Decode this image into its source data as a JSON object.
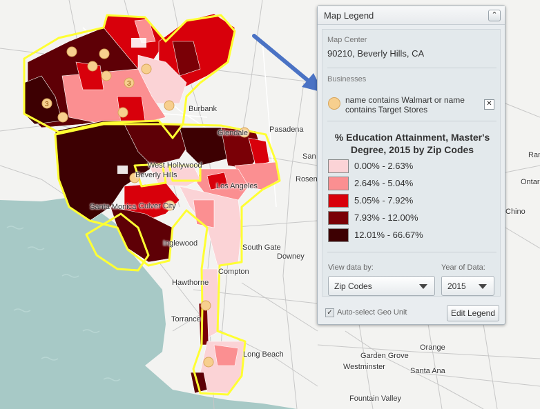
{
  "map": {
    "cities": [
      {
        "name": "Burbank",
        "cls": "c-burbank"
      },
      {
        "name": "Glendale",
        "cls": "c-glendale"
      },
      {
        "name": "Pasadena",
        "cls": "c-pasadena"
      },
      {
        "name": "West Hollywood",
        "cls": "c-weho"
      },
      {
        "name": "Beverly Hills",
        "cls": "c-bh"
      },
      {
        "name": "Los Angeles",
        "cls": "c-la"
      },
      {
        "name": "Santa Monica",
        "cls": "c-sm"
      },
      {
        "name": "Culver City",
        "cls": "c-cc"
      },
      {
        "name": "Inglewood",
        "cls": "c-ing"
      },
      {
        "name": "Rosen",
        "cls": "c-rosen"
      },
      {
        "name": "San Gabri",
        "cls": "c-sg"
      },
      {
        "name": "South Gate",
        "cls": "c-southgate"
      },
      {
        "name": "Downey",
        "cls": "c-downey"
      },
      {
        "name": "Compton",
        "cls": "c-compton"
      },
      {
        "name": "Hawthorne",
        "cls": "c-hawthorne"
      },
      {
        "name": "Torrance",
        "cls": "c-torrance"
      },
      {
        "name": "Long Beach",
        "cls": "c-lb"
      },
      {
        "name": "Garden Grove",
        "cls": "c-gg"
      },
      {
        "name": "Westminster",
        "cls": "c-west"
      },
      {
        "name": "Orange",
        "cls": "c-orange"
      },
      {
        "name": "Santa Ana",
        "cls": "c-sa"
      },
      {
        "name": "Fountain Valley",
        "cls": "c-fv"
      },
      {
        "name": "Chino",
        "cls": "c-chino"
      },
      {
        "name": "Ontar",
        "cls": "c-ontar"
      },
      {
        "name": "Ran",
        "cls": "c-ran"
      }
    ],
    "cluster_labels": [
      "3",
      "3"
    ]
  },
  "legend": {
    "title": "Map Legend",
    "collapse_glyph": "⌃",
    "map_center_label": "Map Center",
    "map_center_value": "90210, Beverly Hills, CA",
    "businesses_label": "Businesses",
    "business_item": "name contains Walmart or name contains Target Stores",
    "remove_glyph": "✕",
    "theme_title": "% Education Attainment, Master's Degree, 2015 by Zip Codes",
    "classes": [
      {
        "label": "0.00% - 2.63%",
        "color": "#fbd3d6"
      },
      {
        "label": "2.64% - 5.04%",
        "color": "#fb8f91"
      },
      {
        "label": "5.05% - 7.92%",
        "color": "#d8000b"
      },
      {
        "label": "7.93% - 12.00%",
        "color": "#7a0006"
      },
      {
        "label": "12.01% - 66.67%",
        "color": "#3d0002"
      }
    ],
    "view_by_label": "View data by:",
    "view_by_value": "Zip Codes",
    "year_label": "Year of Data:",
    "year_value": "2015",
    "auto_select_label": "Auto-select Geo Unit",
    "auto_select_checked": "✓",
    "edit_button": "Edit Legend"
  },
  "colors": {
    "water": "#a7c9c6",
    "boundary": "#ffff33",
    "marker": "#f7cf8e",
    "arrow": "#4a72c4"
  }
}
